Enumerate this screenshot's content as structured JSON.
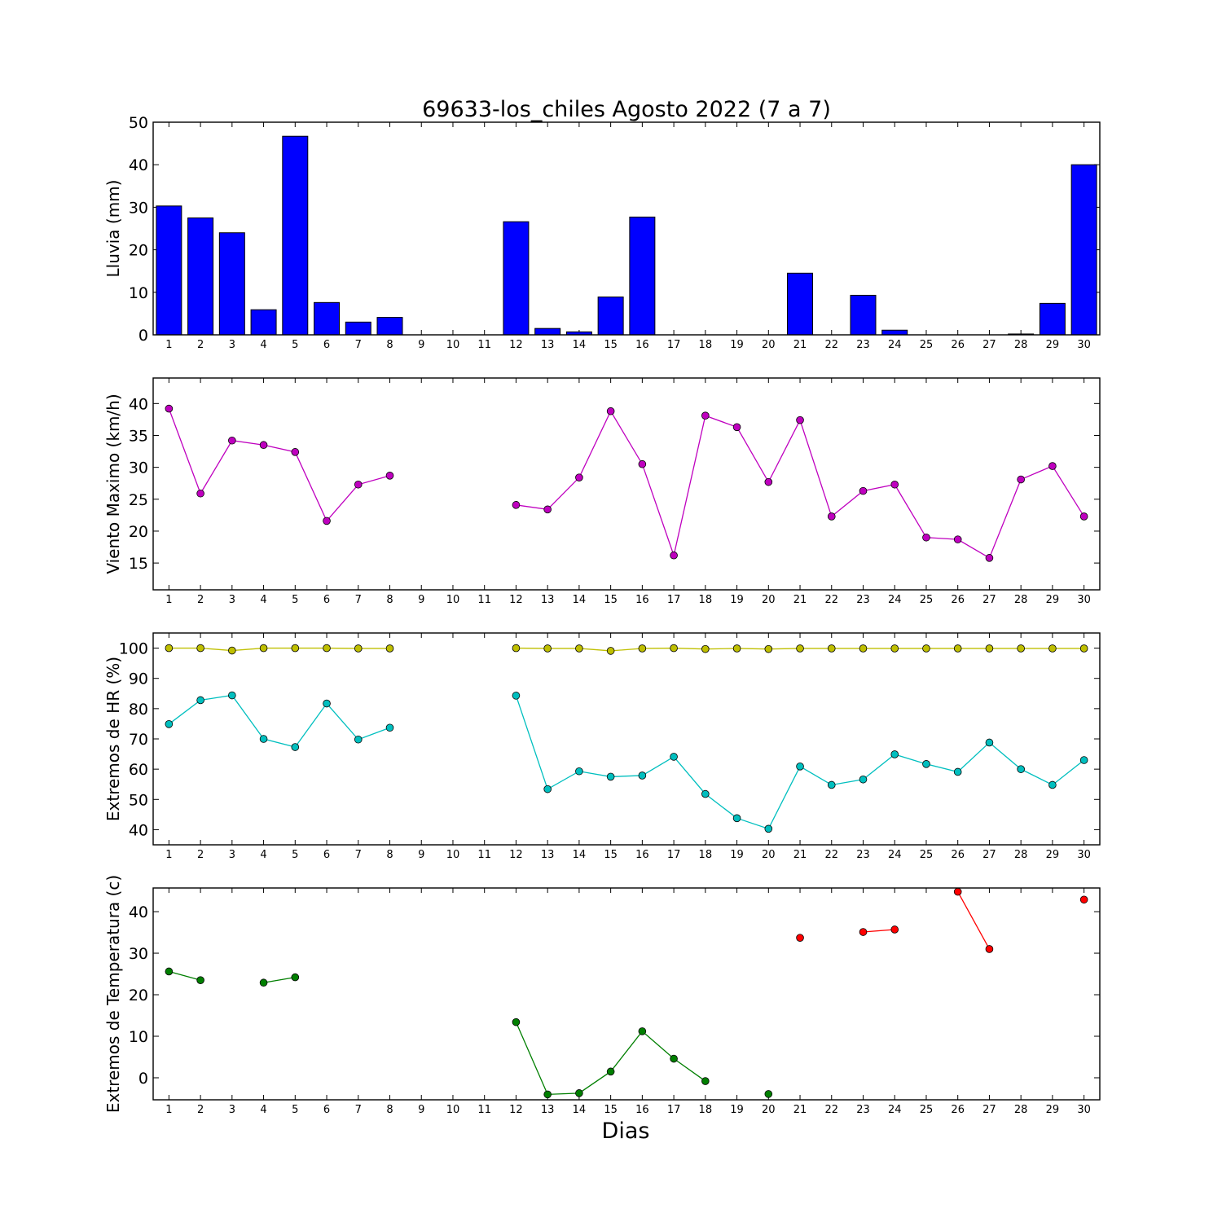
{
  "title": "69633-los_chiles Agosto 2022  (7 a 7)",
  "xlabel": "Dias",
  "colors": {
    "rain": "#0000ff",
    "wind": "#bf00bf",
    "hr_max": "#bfbf00",
    "hr_min": "#00bfbf",
    "temp_min": "#007f00",
    "temp_max": "#ff0000"
  },
  "chart_data": [
    {
      "type": "bar",
      "ylabel": "Lluvia (mm)",
      "ylim": [
        0,
        50
      ],
      "yticks": [
        0,
        10,
        20,
        30,
        40,
        50
      ],
      "categories": [
        1,
        2,
        3,
        4,
        5,
        6,
        7,
        8,
        9,
        10,
        11,
        12,
        13,
        14,
        15,
        16,
        17,
        18,
        19,
        20,
        21,
        22,
        23,
        24,
        25,
        26,
        27,
        28,
        29,
        30
      ],
      "series": [
        {
          "values": [
            30.3,
            27.5,
            24.0,
            5.9,
            46.7,
            7.6,
            3.0,
            4.1,
            0,
            0,
            0,
            26.6,
            1.5,
            0.7,
            8.9,
            27.7,
            0,
            0,
            0,
            0,
            14.5,
            0,
            9.3,
            1.1,
            0,
            0,
            0,
            0.2,
            7.4,
            40.0
          ]
        }
      ]
    },
    {
      "type": "line",
      "ylabel": "Viento Maximo (km/h)",
      "ylim": [
        10.8,
        44.0
      ],
      "yticks": [
        15,
        20,
        25,
        30,
        35,
        40
      ],
      "x": [
        1,
        2,
        3,
        4,
        5,
        6,
        7,
        8,
        9,
        10,
        11,
        12,
        13,
        14,
        15,
        16,
        17,
        18,
        19,
        20,
        21,
        22,
        23,
        24,
        25,
        26,
        27,
        28,
        29,
        30
      ],
      "series": [
        {
          "values": [
            39.2,
            25.9,
            34.2,
            33.5,
            32.4,
            21.6,
            27.3,
            28.7,
            null,
            null,
            null,
            24.1,
            23.4,
            28.4,
            38.8,
            30.5,
            16.2,
            38.1,
            36.3,
            27.7,
            37.4,
            22.3,
            26.3,
            27.3,
            19.0,
            18.7,
            15.8,
            28.1,
            30.2,
            22.3
          ]
        }
      ]
    },
    {
      "type": "line",
      "ylabel": "Extremos de HR (%)",
      "ylim": [
        35,
        105
      ],
      "yticks": [
        40,
        50,
        60,
        70,
        80,
        90,
        100
      ],
      "x": [
        1,
        2,
        3,
        4,
        5,
        6,
        7,
        8,
        9,
        10,
        11,
        12,
        13,
        14,
        15,
        16,
        17,
        18,
        19,
        20,
        21,
        22,
        23,
        24,
        25,
        26,
        27,
        28,
        29,
        30
      ],
      "series": [
        {
          "values": [
            100,
            100,
            99.2,
            100,
            100,
            100,
            99.9,
            99.9,
            null,
            null,
            null,
            100,
            99.9,
            99.9,
            99.1,
            99.9,
            100,
            99.7,
            99.9,
            99.7,
            99.9,
            99.9,
            99.9,
            99.9,
            99.9,
            99.9,
            99.9,
            99.9,
            99.9,
            99.9
          ]
        },
        {
          "values": [
            74.9,
            82.8,
            84.4,
            70.0,
            67.3,
            81.7,
            69.8,
            73.7,
            null,
            null,
            null,
            84.3,
            53.4,
            59.3,
            57.5,
            57.9,
            64.1,
            51.8,
            43.8,
            40.3,
            60.9,
            54.8,
            56.6,
            64.9,
            61.7,
            59.1,
            68.8,
            60.0,
            54.8,
            63.0
          ]
        }
      ]
    },
    {
      "type": "line",
      "ylabel": "Extremos de Temperatura (c)",
      "ylim": [
        -5.3,
        45.7
      ],
      "yticks": [
        0,
        10,
        20,
        30,
        40
      ],
      "x": [
        1,
        2,
        3,
        4,
        5,
        6,
        7,
        8,
        9,
        10,
        11,
        12,
        13,
        14,
        15,
        16,
        17,
        18,
        19,
        20,
        21,
        22,
        23,
        24,
        25,
        26,
        27,
        28,
        29,
        30
      ],
      "series": [
        {
          "values": [
            25.6,
            23.5,
            null,
            22.9,
            24.2,
            null,
            null,
            null,
            null,
            null,
            null,
            13.4,
            -4.0,
            -3.7,
            1.5,
            11.2,
            4.6,
            -0.8,
            null,
            -3.9,
            null,
            null,
            null,
            null,
            null,
            null,
            null,
            null,
            null,
            null
          ]
        },
        {
          "values": [
            null,
            null,
            null,
            null,
            null,
            null,
            null,
            null,
            null,
            null,
            null,
            null,
            null,
            null,
            null,
            null,
            null,
            null,
            null,
            null,
            33.7,
            null,
            35.1,
            35.7,
            null,
            44.8,
            31.0,
            null,
            null,
            42.9
          ]
        }
      ]
    }
  ]
}
